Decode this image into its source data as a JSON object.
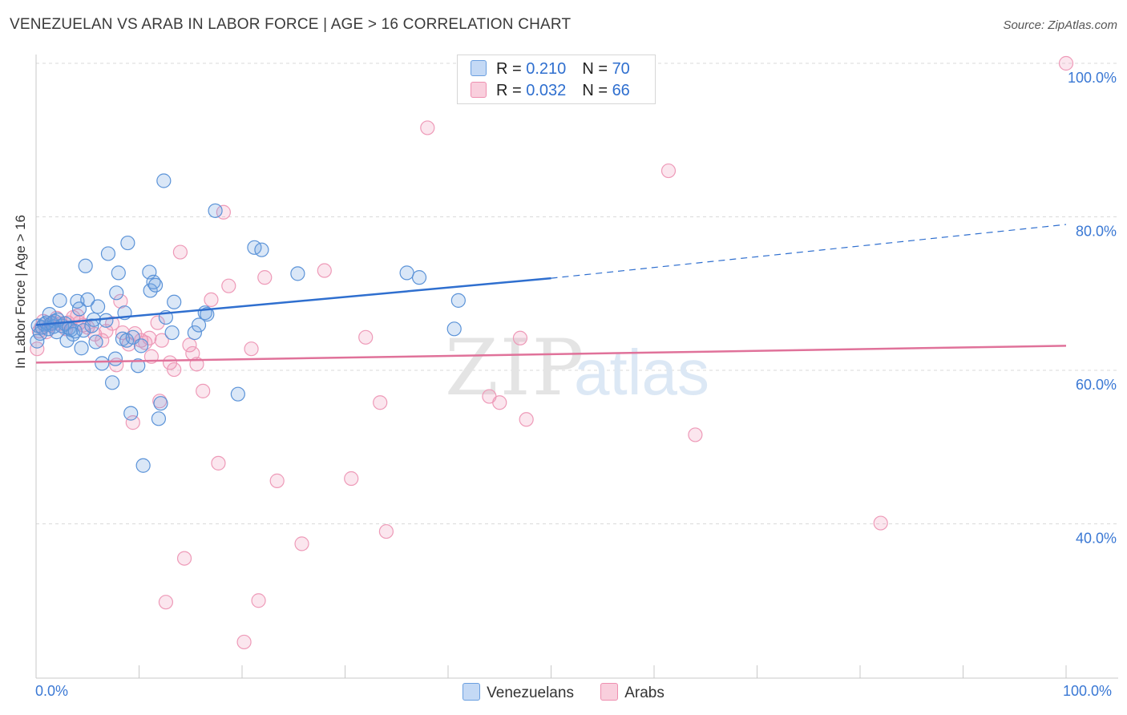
{
  "title": "VENEZUELAN VS ARAB IN LABOR FORCE | AGE > 16 CORRELATION CHART",
  "source": "Source: ZipAtlas.com",
  "colors": {
    "blue": "#6a9fe0",
    "blue_line": "#2f6fcf",
    "pink": "#ee8fb0",
    "pink_line": "#e0729a",
    "axis_label": "#3a78d4"
  },
  "legend": {
    "venezuelans": {
      "r_label": "R = ",
      "r_value": "0.210",
      "n_label": "N = ",
      "n_value": "70"
    },
    "arabs": {
      "r_label": "R = ",
      "r_value": "0.032",
      "n_label": "N = ",
      "n_value": "66"
    }
  },
  "series_names": [
    "Venezuelans",
    "Arabs"
  ],
  "watermark": "ZIPatlas",
  "chart_data": {
    "type": "scatter",
    "title": "VENEZUELAN VS ARAB IN LABOR FORCE | AGE > 16 CORRELATION CHART",
    "xlabel": "",
    "ylabel": "In Labor Force | Age > 16",
    "xlim": [
      0,
      100
    ],
    "ylim": [
      20,
      100
    ],
    "x_tick_labels": [
      "0.0%",
      "100.0%"
    ],
    "y_tick_labels": [
      "40.0%",
      "60.0%",
      "80.0%",
      "100.0%"
    ],
    "y_ticks": [
      40,
      60,
      80,
      100
    ],
    "series": [
      {
        "name": "Venezuelans",
        "r": 0.21,
        "n": 70,
        "trend": {
          "x0": 0,
          "y0": 65.9,
          "x1": 50,
          "y1": 72.0,
          "dash_to_x": 100,
          "dash_to_y": 79.0
        },
        "points": [
          [
            0.2,
            65.8
          ],
          [
            0.4,
            64.8
          ],
          [
            0.6,
            65.6
          ],
          [
            0.8,
            66.0
          ],
          [
            1.0,
            66.2
          ],
          [
            1.2,
            65.4
          ],
          [
            1.3,
            67.3
          ],
          [
            1.5,
            66.1
          ],
          [
            1.7,
            65.7
          ],
          [
            1.8,
            66.4
          ],
          [
            2.0,
            65.0
          ],
          [
            2.1,
            66.6
          ],
          [
            2.3,
            69.1
          ],
          [
            2.5,
            65.8
          ],
          [
            2.8,
            66.1
          ],
          [
            3.0,
            63.9
          ],
          [
            3.2,
            65.5
          ],
          [
            3.4,
            65.3
          ],
          [
            3.6,
            64.7
          ],
          [
            3.8,
            65.1
          ],
          [
            4.0,
            69.0
          ],
          [
            4.2,
            68.0
          ],
          [
            4.4,
            62.9
          ],
          [
            4.6,
            65.2
          ],
          [
            4.8,
            73.6
          ],
          [
            5.0,
            69.2
          ],
          [
            5.4,
            65.8
          ],
          [
            5.6,
            66.6
          ],
          [
            5.8,
            63.7
          ],
          [
            6.0,
            68.3
          ],
          [
            6.4,
            60.9
          ],
          [
            6.8,
            66.5
          ],
          [
            7.0,
            75.2
          ],
          [
            7.4,
            58.4
          ],
          [
            7.7,
            61.5
          ],
          [
            7.8,
            70.1
          ],
          [
            8.0,
            72.7
          ],
          [
            8.4,
            64.1
          ],
          [
            8.6,
            67.5
          ],
          [
            8.8,
            63.9
          ],
          [
            8.9,
            76.6
          ],
          [
            9.2,
            54.4
          ],
          [
            9.4,
            64.3
          ],
          [
            9.9,
            60.6
          ],
          [
            10.2,
            63.2
          ],
          [
            10.4,
            47.6
          ],
          [
            11.0,
            72.8
          ],
          [
            11.1,
            70.4
          ],
          [
            11.4,
            71.5
          ],
          [
            11.6,
            71.1
          ],
          [
            11.9,
            53.7
          ],
          [
            12.1,
            55.7
          ],
          [
            12.4,
            84.7
          ],
          [
            12.6,
            66.9
          ],
          [
            13.2,
            64.9
          ],
          [
            13.4,
            68.9
          ],
          [
            15.4,
            64.9
          ],
          [
            15.8,
            65.9
          ],
          [
            16.4,
            67.5
          ],
          [
            16.6,
            67.3
          ],
          [
            17.4,
            80.8
          ],
          [
            19.6,
            56.9
          ],
          [
            21.2,
            76.0
          ],
          [
            21.9,
            75.7
          ],
          [
            25.4,
            72.6
          ],
          [
            36.0,
            72.7
          ],
          [
            37.2,
            72.1
          ],
          [
            40.6,
            65.4
          ],
          [
            41.0,
            69.1
          ],
          [
            0.1,
            63.8
          ]
        ]
      },
      {
        "name": "Arabs",
        "r": 0.032,
        "n": 66,
        "trend": {
          "x0": 0,
          "y0": 61.0,
          "x1": 100,
          "y1": 63.2
        },
        "points": [
          [
            0.1,
            62.8
          ],
          [
            0.3,
            65.1
          ],
          [
            0.5,
            65.6
          ],
          [
            0.7,
            66.4
          ],
          [
            1.0,
            65.0
          ],
          [
            1.3,
            65.9
          ],
          [
            1.6,
            66.2
          ],
          [
            2.0,
            66.8
          ],
          [
            2.4,
            66.1
          ],
          [
            2.9,
            65.4
          ],
          [
            3.1,
            66.2
          ],
          [
            3.6,
            66.9
          ],
          [
            4.0,
            67.1
          ],
          [
            4.2,
            66.2
          ],
          [
            4.6,
            65.9
          ],
          [
            5.0,
            65.6
          ],
          [
            5.7,
            64.7
          ],
          [
            6.4,
            63.9
          ],
          [
            6.8,
            65.1
          ],
          [
            7.4,
            66.1
          ],
          [
            7.8,
            60.7
          ],
          [
            8.2,
            69.0
          ],
          [
            8.4,
            64.9
          ],
          [
            9.0,
            63.4
          ],
          [
            9.4,
            53.2
          ],
          [
            9.6,
            64.8
          ],
          [
            10.2,
            63.9
          ],
          [
            10.6,
            63.6
          ],
          [
            11.0,
            64.2
          ],
          [
            11.2,
            61.8
          ],
          [
            11.8,
            66.2
          ],
          [
            12.0,
            56.0
          ],
          [
            12.2,
            63.9
          ],
          [
            12.6,
            29.8
          ],
          [
            13.0,
            61.0
          ],
          [
            13.4,
            60.1
          ],
          [
            14.0,
            75.4
          ],
          [
            14.4,
            35.5
          ],
          [
            14.9,
            63.3
          ],
          [
            15.2,
            62.2
          ],
          [
            15.6,
            60.8
          ],
          [
            16.2,
            57.3
          ],
          [
            17.0,
            69.2
          ],
          [
            17.7,
            47.9
          ],
          [
            18.2,
            80.6
          ],
          [
            18.7,
            71.0
          ],
          [
            20.2,
            24.6
          ],
          [
            20.9,
            62.8
          ],
          [
            21.6,
            30.0
          ],
          [
            22.2,
            72.1
          ],
          [
            23.4,
            45.6
          ],
          [
            25.8,
            37.4
          ],
          [
            28.0,
            73.0
          ],
          [
            30.6,
            45.9
          ],
          [
            32.0,
            64.3
          ],
          [
            33.4,
            55.8
          ],
          [
            34.0,
            39.0
          ],
          [
            38.0,
            91.6
          ],
          [
            44.0,
            56.6
          ],
          [
            45.0,
            55.8
          ],
          [
            47.0,
            64.2
          ],
          [
            47.6,
            53.6
          ],
          [
            61.4,
            86.0
          ],
          [
            64.0,
            51.6
          ],
          [
            82.0,
            40.1
          ],
          [
            100.0,
            100.0
          ]
        ]
      }
    ]
  }
}
